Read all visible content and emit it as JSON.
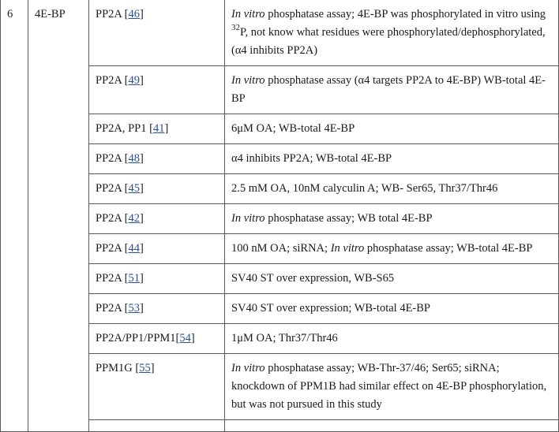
{
  "row_number": "6",
  "gene": "4E-BP",
  "rows": [
    {
      "enzyme": "PP2A [",
      "ref": "46",
      "enzyme_after": "]",
      "detail_italic": "In vitro",
      "detail_a": " phosphatase assay; 4E-BP was phosphorylated in vitro using ",
      "detail_sup": "32",
      "detail_b": "P, not know what residues were phosphorylated/dephosphorylated, (α4 inhibits PP2A)"
    },
    {
      "enzyme": "PP2A [",
      "ref": "49",
      "enzyme_after": "]",
      "detail_italic": "In vitro",
      "detail_a": " phosphatase assay (α4 targets PP2A to 4E-BP) WB-total 4E-BP"
    },
    {
      "enzyme": "PP2A, PP1 [",
      "ref": "41",
      "enzyme_after": "]",
      "detail_a": "6μM OA; WB-total 4E-BP"
    },
    {
      "enzyme": "PP2A [",
      "ref": "48",
      "enzyme_after": "]",
      "detail_a": "α4 inhibits PP2A; WB-total 4E-BP"
    },
    {
      "enzyme": "PP2A [",
      "ref": "45",
      "enzyme_after": "]",
      "detail_a": "2.5 mM OA, 10nM calyculin A; WB- Ser65, Thr37/Thr46"
    },
    {
      "enzyme": "PP2A [",
      "ref": "42",
      "enzyme_after": "]",
      "detail_italic": "In vitro",
      "detail_a": " phosphatase assay; WB total 4E-BP"
    },
    {
      "enzyme": "PP2A [",
      "ref": "44",
      "enzyme_after": "]",
      "detail_a": "100 nM OA; siRNA; ",
      "detail_italic2": "In vitro",
      "detail_b": " phosphatase assay; WB-total 4E-BP"
    },
    {
      "enzyme": "PP2A [",
      "ref": "51",
      "enzyme_after": "]",
      "detail_a": "SV40 ST over expression, WB-S65"
    },
    {
      "enzyme": "PP2A [",
      "ref": "53",
      "enzyme_after": "]",
      "detail_a": "SV40 ST over expression; WB-total 4E-BP"
    },
    {
      "enzyme": "PP2A/PP1/PPM1[",
      "ref": "54",
      "enzyme_after": "]",
      "detail_a": "1μM OA; Thr37/Thr46"
    },
    {
      "enzyme": "PPM1G [",
      "ref": "55",
      "enzyme_after": "]",
      "detail_italic": "In vitro",
      "detail_a": " phosphatase assay; WB-Thr-37/46; Ser65; siRNA; knockdown of PPM1B had similar effect on 4E-BP phosphorylation, but was not pursued in this study"
    }
  ]
}
